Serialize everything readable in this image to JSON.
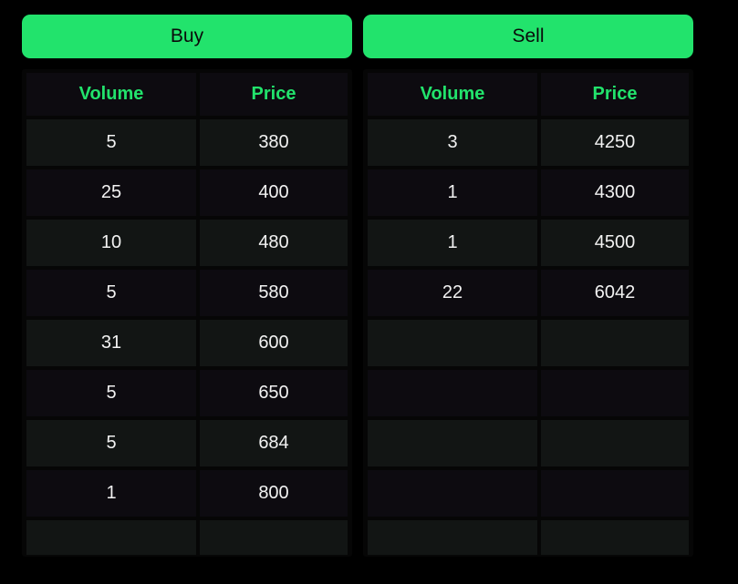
{
  "buy": {
    "label": "Buy",
    "headers": {
      "volume": "Volume",
      "price": "Price"
    },
    "rows": [
      {
        "volume": "5",
        "price": "380"
      },
      {
        "volume": "25",
        "price": "400"
      },
      {
        "volume": "10",
        "price": "480"
      },
      {
        "volume": "5",
        "price": "580"
      },
      {
        "volume": "31",
        "price": "600"
      },
      {
        "volume": "5",
        "price": "650"
      },
      {
        "volume": "5",
        "price": "684"
      },
      {
        "volume": "1",
        "price": "800"
      },
      {
        "volume": "",
        "price": ""
      }
    ]
  },
  "sell": {
    "label": "Sell",
    "headers": {
      "volume": "Volume",
      "price": "Price"
    },
    "rows": [
      {
        "volume": "3",
        "price": "4250"
      },
      {
        "volume": "1",
        "price": "4300"
      },
      {
        "volume": "1",
        "price": "4500"
      },
      {
        "volume": "22",
        "price": "6042"
      },
      {
        "volume": "",
        "price": ""
      },
      {
        "volume": "",
        "price": ""
      },
      {
        "volume": "",
        "price": ""
      },
      {
        "volume": "",
        "price": ""
      },
      {
        "volume": "",
        "price": ""
      }
    ]
  },
  "colors": {
    "accent": "#22e36c",
    "background": "#000000",
    "cell_dark": "#0d0b10",
    "cell_light": "#121514",
    "text": "#f2f2f2"
  }
}
